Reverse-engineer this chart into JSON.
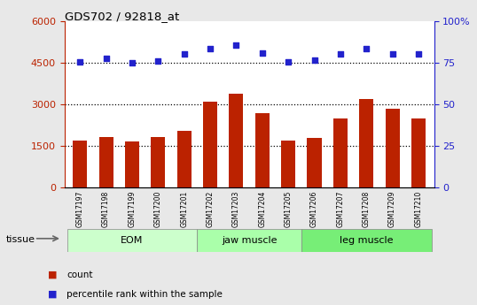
{
  "title": "GDS702 / 92818_at",
  "samples": [
    "GSM17197",
    "GSM17198",
    "GSM17199",
    "GSM17200",
    "GSM17201",
    "GSM17202",
    "GSM17203",
    "GSM17204",
    "GSM17205",
    "GSM17206",
    "GSM17207",
    "GSM17208",
    "GSM17209",
    "GSM17210"
  ],
  "counts": [
    1700,
    1820,
    1680,
    1820,
    2050,
    3100,
    3400,
    2700,
    1700,
    1800,
    2500,
    3200,
    2850,
    2500
  ],
  "percentile": [
    75.5,
    77.5,
    75.0,
    76.0,
    80.5,
    83.5,
    85.5,
    81.0,
    75.5,
    76.5,
    80.5,
    83.5,
    80.5,
    80.5
  ],
  "bar_color": "#bb2200",
  "dot_color": "#2222cc",
  "left_ylim": [
    0,
    6000
  ],
  "left_yticks": [
    0,
    1500,
    3000,
    4500,
    6000
  ],
  "right_ylim": [
    0,
    100
  ],
  "right_yticks": [
    0,
    25,
    50,
    75,
    100
  ],
  "hlines": [
    1500,
    3000,
    4500
  ],
  "groups": [
    {
      "label": "EOM",
      "start": 0,
      "end": 4,
      "color": "#ccffcc"
    },
    {
      "label": "jaw muscle",
      "start": 5,
      "end": 8,
      "color": "#aaffaa"
    },
    {
      "label": "leg muscle",
      "start": 9,
      "end": 13,
      "color": "#77ee77"
    }
  ],
  "tissue_label": "tissue",
  "legend_count_label": "count",
  "legend_pct_label": "percentile rank within the sample",
  "fig_bg": "#e8e8e8",
  "plot_bg": "#ffffff",
  "ticklabel_bg": "#cccccc"
}
